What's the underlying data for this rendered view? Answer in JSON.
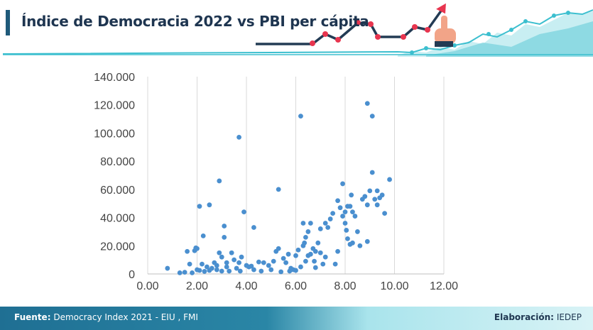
{
  "header": {
    "title": "Índice de Democracia 2022 vs PBI per cápita"
  },
  "footer": {
    "source_label": "Fuente:",
    "source_value": "Democracy Index 2021 - EIU , FMI",
    "credit_label": "Elaboración:",
    "credit_value": "IEDEP"
  },
  "colors": {
    "point": "#4a8fcf",
    "title_bar": "#1f5a7a",
    "line_dark": "#233b54",
    "marker_red": "#e8354f",
    "teal": "#3cbfcf",
    "footer_blue": "#1f6f93"
  },
  "chart_data": {
    "type": "scatter",
    "title": "",
    "xlabel": "",
    "ylabel": "",
    "xlim": [
      0,
      12
    ],
    "ylim": [
      0,
      140000
    ],
    "x_ticks": [
      "0.00",
      "2.00",
      "4.00",
      "6.00",
      "8.00",
      "10.00",
      "12.00"
    ],
    "y_ticks": [
      "0",
      "20.000",
      "40.000",
      "60.000",
      "80.000",
      "100.000",
      "120.000",
      "140.000"
    ],
    "grid": "vertical",
    "legend": "none",
    "points": [
      [
        0.8,
        4000
      ],
      [
        1.3,
        800
      ],
      [
        1.5,
        1200
      ],
      [
        1.6,
        16000
      ],
      [
        1.7,
        7000
      ],
      [
        1.8,
        800
      ],
      [
        1.9,
        16500
      ],
      [
        1.95,
        18500
      ],
      [
        2.0,
        3000
      ],
      [
        2.0,
        18000
      ],
      [
        2.1,
        48000
      ],
      [
        2.1,
        2500
      ],
      [
        2.2,
        7000
      ],
      [
        2.25,
        27000
      ],
      [
        2.3,
        1800
      ],
      [
        2.4,
        5000
      ],
      [
        2.5,
        49000
      ],
      [
        2.5,
        2500
      ],
      [
        2.6,
        4000
      ],
      [
        2.7,
        8000
      ],
      [
        2.8,
        6000
      ],
      [
        2.8,
        3000
      ],
      [
        2.9,
        15000
      ],
      [
        2.9,
        66000
      ],
      [
        3.0,
        12000
      ],
      [
        3.0,
        2000
      ],
      [
        3.1,
        26000
      ],
      [
        3.1,
        34000
      ],
      [
        3.2,
        5000
      ],
      [
        3.2,
        8000
      ],
      [
        3.3,
        2000
      ],
      [
        3.4,
        15000
      ],
      [
        3.5,
        10000
      ],
      [
        3.6,
        4000
      ],
      [
        3.7,
        97000
      ],
      [
        3.7,
        8000
      ],
      [
        3.75,
        2000
      ],
      [
        3.8,
        12000
      ],
      [
        3.9,
        44000
      ],
      [
        4.0,
        6000
      ],
      [
        4.1,
        5000
      ],
      [
        4.2,
        5500
      ],
      [
        4.3,
        3000
      ],
      [
        4.3,
        33000
      ],
      [
        4.5,
        8500
      ],
      [
        4.6,
        2000
      ],
      [
        4.7,
        8000
      ],
      [
        4.9,
        6000
      ],
      [
        5.0,
        3000
      ],
      [
        5.1,
        9000
      ],
      [
        5.2,
        16000
      ],
      [
        5.3,
        60000
      ],
      [
        5.3,
        18000
      ],
      [
        5.4,
        1500
      ],
      [
        5.5,
        11000
      ],
      [
        5.6,
        8000
      ],
      [
        5.7,
        14000
      ],
      [
        5.75,
        2000
      ],
      [
        5.8,
        4000
      ],
      [
        5.9,
        3000
      ],
      [
        6.0,
        2500
      ],
      [
        6.0,
        13000
      ],
      [
        6.1,
        17000
      ],
      [
        6.2,
        112000
      ],
      [
        6.2,
        5000
      ],
      [
        6.3,
        20000
      ],
      [
        6.3,
        36000
      ],
      [
        6.35,
        22000
      ],
      [
        6.4,
        9000
      ],
      [
        6.4,
        26000
      ],
      [
        6.5,
        13000
      ],
      [
        6.5,
        30000
      ],
      [
        6.6,
        14000
      ],
      [
        6.6,
        36000
      ],
      [
        6.7,
        18000
      ],
      [
        6.75,
        9000
      ],
      [
        6.8,
        16000
      ],
      [
        6.8,
        4500
      ],
      [
        6.9,
        22000
      ],
      [
        7.0,
        15000
      ],
      [
        7.0,
        32000
      ],
      [
        7.1,
        7000
      ],
      [
        7.2,
        12000
      ],
      [
        7.2,
        36000
      ],
      [
        7.3,
        33000
      ],
      [
        7.4,
        39000
      ],
      [
        7.5,
        43000
      ],
      [
        7.6,
        7000
      ],
      [
        7.7,
        16000
      ],
      [
        7.7,
        52000
      ],
      [
        7.8,
        47000
      ],
      [
        7.9,
        41000
      ],
      [
        7.9,
        64000
      ],
      [
        8.0,
        44000
      ],
      [
        8.0,
        36000
      ],
      [
        8.05,
        31000
      ],
      [
        8.1,
        48000
      ],
      [
        8.1,
        25000
      ],
      [
        8.2,
        21000
      ],
      [
        8.2,
        48000
      ],
      [
        8.25,
        56000
      ],
      [
        8.3,
        22000
      ],
      [
        8.3,
        44000
      ],
      [
        8.4,
        41000
      ],
      [
        8.5,
        30000
      ],
      [
        8.6,
        20000
      ],
      [
        8.7,
        53000
      ],
      [
        8.8,
        55000
      ],
      [
        8.9,
        121000
      ],
      [
        8.9,
        49000
      ],
      [
        8.9,
        23000
      ],
      [
        9.0,
        59000
      ],
      [
        9.1,
        112000
      ],
      [
        9.1,
        72000
      ],
      [
        9.2,
        53000
      ],
      [
        9.3,
        49000
      ],
      [
        9.3,
        59000
      ],
      [
        9.4,
        54000
      ],
      [
        9.5,
        56000
      ],
      [
        9.6,
        43000
      ],
      [
        9.8,
        67000
      ]
    ]
  }
}
